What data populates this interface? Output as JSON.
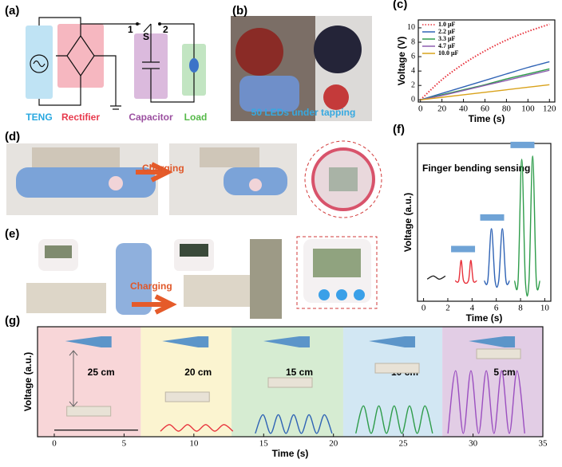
{
  "figure": {
    "a": {
      "label": "(a)",
      "teng": "TENG",
      "rectifier": "Rectifier",
      "capacitor": "Capacitor",
      "load": "Load",
      "switch": "S",
      "pos1": "1",
      "pos2": "2"
    },
    "b": {
      "label": "(b)",
      "caption": "50 LEDs under tapping"
    },
    "d": {
      "label": "(d)",
      "arrow": "Charging"
    },
    "e": {
      "label": "(e)",
      "arrow": "Charging"
    }
  },
  "chart_data": [
    {
      "type": "line",
      "label": "(c)",
      "xlabel": "Time (s)",
      "ylabel": "Voltage (V)",
      "x": [
        0,
        20,
        40,
        60,
        80,
        100,
        120
      ],
      "xlim": [
        -2,
        125
      ],
      "ylim": [
        -0.3,
        11.1
      ],
      "xticks": [
        0,
        20,
        40,
        60,
        80,
        100,
        120
      ],
      "yticks": [
        0,
        2,
        4,
        6,
        8,
        10
      ],
      "legend": "upper left",
      "series": [
        {
          "name": "1.0 μF",
          "color": "#e8323c",
          "line_style": "dotted",
          "values": [
            0,
            2.8,
            5.0,
            6.8,
            8.3,
            9.5,
            10.5
          ]
        },
        {
          "name": "2.2 μF",
          "color": "#2f63b5",
          "line_style": "solid",
          "values": [
            0,
            0.9,
            1.8,
            2.7,
            3.6,
            4.5,
            5.3
          ]
        },
        {
          "name": "3.3 μF",
          "color": "#2e9c4a",
          "line_style": "solid",
          "values": [
            0,
            0.7,
            1.4,
            2.1,
            2.9,
            3.6,
            4.3
          ]
        },
        {
          "name": "4.7 μF",
          "color": "#8e5db0",
          "line_style": "solid",
          "values": [
            0,
            0.6,
            1.3,
            2.0,
            2.7,
            3.4,
            4.1
          ]
        },
        {
          "name": "10.0 μF",
          "color": "#d9a21b",
          "line_style": "solid",
          "values": [
            0,
            0.35,
            0.7,
            1.05,
            1.4,
            1.75,
            2.1
          ]
        }
      ]
    },
    {
      "type": "line",
      "label": "(f)",
      "title": "Finger bending sensing",
      "xlabel": "Time (s)",
      "ylabel": "Voltage (a.u.)",
      "xlim": [
        -0.5,
        10.5
      ],
      "ylim": [
        0,
        10
      ],
      "xticks": [
        0,
        2,
        4,
        6,
        8,
        10
      ],
      "series": [
        {
          "color": "#222222",
          "x": [
            0.3,
            0.8,
            1.3,
            1.8
          ],
          "values": [
            1.4,
            1.6,
            1.4,
            1.6
          ]
        },
        {
          "color": "#e8323c",
          "x": [
            2.6,
            2.9,
            3.1,
            3.3,
            3.7,
            3.9,
            4.1,
            4.4
          ],
          "values": [
            1.3,
            1.3,
            2.6,
            1.3,
            1.3,
            2.6,
            1.3,
            1.3
          ]
        },
        {
          "color": "#2f63b5",
          "x": [
            5.0,
            5.3,
            5.6,
            5.9,
            6.2,
            6.5,
            6.8,
            7.1
          ],
          "values": [
            1.3,
            1.3,
            4.6,
            1.3,
            1.3,
            4.6,
            1.3,
            1.3
          ]
        },
        {
          "color": "#2e9c4a",
          "x": [
            7.5,
            7.8,
            8.1,
            8.4,
            8.7,
            9.0,
            9.3,
            9.6
          ],
          "values": [
            1.3,
            1.3,
            9.0,
            1.3,
            1.3,
            9.2,
            1.3,
            1.3
          ]
        }
      ]
    },
    {
      "type": "line",
      "label": "(g)",
      "xlabel": "Time (s)",
      "ylabel": "Voltage (a.u.)",
      "xlim": [
        -1.2,
        35
      ],
      "ylim": [
        0,
        10
      ],
      "xticks": [
        0,
        5,
        10,
        15,
        20,
        25,
        30,
        35
      ],
      "bands": [
        {
          "start": -1.2,
          "end": 6.2,
          "label": "25 cm",
          "color": "#f8d6d8"
        },
        {
          "start": 6.2,
          "end": 12.7,
          "label": "20 cm",
          "color": "#fbf4d0"
        },
        {
          "start": 12.7,
          "end": 20.7,
          "label": "15 cm",
          "color": "#d6ecd2"
        },
        {
          "start": 20.7,
          "end": 27.8,
          "label": "10 cm",
          "color": "#d2e7f3"
        },
        {
          "start": 27.8,
          "end": 35,
          "label": "5 cm",
          "color": "#e2cde5"
        }
      ],
      "series": [
        {
          "color": "#222222",
          "x": [
            0,
            6
          ],
          "values": [
            0.6,
            0.6
          ]
        },
        {
          "color": "#e8323c",
          "x": [
            7.6,
            8.25,
            8.9,
            9.55,
            10.2,
            10.85,
            11.5,
            12.15,
            12.8
          ],
          "values": [
            0.5,
            1.1,
            0.5,
            1.1,
            0.5,
            1.1,
            0.5,
            1.1,
            0.5
          ]
        },
        {
          "color": "#2f63b5",
          "x": [
            14.4,
            14.95,
            15.5,
            16.05,
            16.6,
            17.15,
            17.7,
            18.25,
            18.8,
            19.35,
            19.9
          ],
          "values": [
            0.3,
            2.0,
            0.3,
            2.0,
            0.3,
            2.0,
            0.3,
            2.0,
            0.3,
            2.0,
            0.3
          ]
        },
        {
          "color": "#2e9c4a",
          "x": [
            21.6,
            22.15,
            22.7,
            23.25,
            23.8,
            24.35,
            24.9,
            25.45,
            26.0,
            26.55,
            27.1
          ],
          "values": [
            0.3,
            2.8,
            0.3,
            2.8,
            0.3,
            2.8,
            0.3,
            2.8,
            0.3,
            2.8,
            0.3
          ]
        },
        {
          "color": "#9b4fc0",
          "x": [
            28.2,
            28.75,
            29.3,
            29.85,
            30.4,
            30.95,
            31.5,
            32.05,
            32.6,
            33.15,
            33.7
          ],
          "values": [
            0.3,
            6.0,
            0.3,
            6.0,
            0.3,
            6.0,
            0.3,
            6.0,
            0.3,
            6.0,
            0.3
          ]
        }
      ]
    }
  ]
}
